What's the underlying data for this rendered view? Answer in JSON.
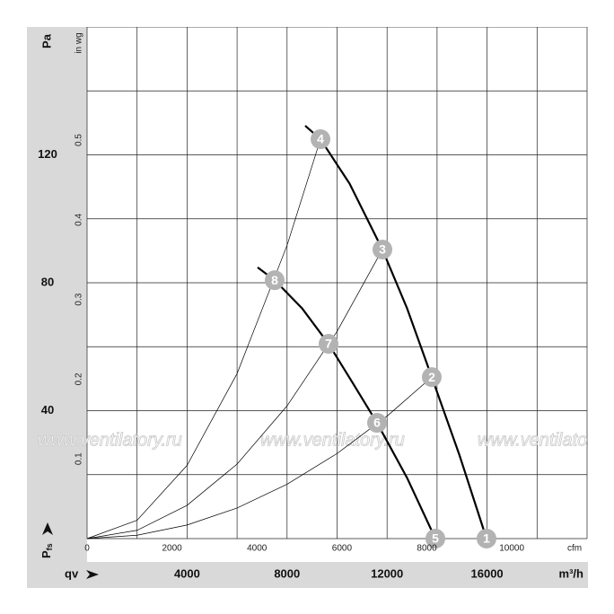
{
  "chart_data": {
    "type": "fan-curve",
    "x_unit": "m³/h",
    "x_symbol": "qv",
    "x2_unit": "cfm",
    "y_unit": "Pa",
    "y2_unit": "in wg",
    "y_symbol": {
      "main": "P",
      "sub": "fs"
    },
    "watermark": "www.ventilatory.ru",
    "xlim": [
      0,
      20000
    ],
    "xticks": [
      4000,
      8000,
      12000,
      16000
    ],
    "xgrid": [
      0,
      2000,
      4000,
      6000,
      8000,
      10000,
      12000,
      14000,
      16000,
      18000,
      20000
    ],
    "x2lim": [
      0,
      11772
    ],
    "x2ticks": [
      0,
      2000,
      4000,
      6000,
      8000,
      10000
    ],
    "ylim": [
      0,
      160
    ],
    "yticks": [
      40,
      80,
      120
    ],
    "ygrid": [
      0,
      20,
      40,
      60,
      80,
      100,
      120,
      140,
      160
    ],
    "y2lim": [
      0,
      0.642
    ],
    "y2ticks": [
      0.1,
      0.2,
      0.3,
      0.4,
      0.5
    ],
    "series": [
      {
        "name": "curve-high",
        "width": 2.2,
        "x": [
          8725,
          9336,
          10500,
          11813,
          12800,
          13788,
          14900,
          15978
        ],
        "values": [
          129.1,
          124.9,
          111,
          90.4,
          72,
          50.5,
          26,
          0
        ]
      },
      {
        "name": "curve-low",
        "width": 2.2,
        "x": [
          6822,
          7504,
          8600,
          9659,
          10600,
          11598,
          12800,
          13932
        ],
        "values": [
          84.8,
          80.8,
          72,
          60.9,
          49,
          36.2,
          19,
          0
        ]
      },
      {
        "name": "system-1",
        "width": 0.7,
        "x": [
          0,
          2000,
          4000,
          6000,
          8000,
          9336
        ],
        "values": [
          0,
          5.73,
          22.9,
          51.6,
          91.7,
          124.9
        ]
      },
      {
        "name": "system-2",
        "width": 0.7,
        "x": [
          0,
          2000,
          4000,
          6000,
          8000,
          10000,
          11813
        ],
        "values": [
          0,
          2.59,
          10.4,
          23.3,
          41.5,
          64.8,
          90.4
        ]
      },
      {
        "name": "system-3",
        "width": 0.7,
        "x": [
          0,
          2000,
          4000,
          6000,
          8000,
          10000,
          12000,
          13788
        ],
        "values": [
          0,
          1.06,
          4.25,
          9.56,
          17.0,
          26.6,
          38.3,
          50.5
        ]
      }
    ],
    "points": [
      {
        "label": "1",
        "x": 15978,
        "y": 0
      },
      {
        "label": "2",
        "x": 13788,
        "y": 50.5
      },
      {
        "label": "3",
        "x": 11813,
        "y": 90.4
      },
      {
        "label": "4",
        "x": 9336,
        "y": 124.9
      },
      {
        "label": "5",
        "x": 13932,
        "y": 0
      },
      {
        "label": "6",
        "x": 11598,
        "y": 36.2
      },
      {
        "label": "7",
        "x": 9659,
        "y": 60.9
      },
      {
        "label": "8",
        "x": 7504,
        "y": 80.8
      }
    ]
  }
}
